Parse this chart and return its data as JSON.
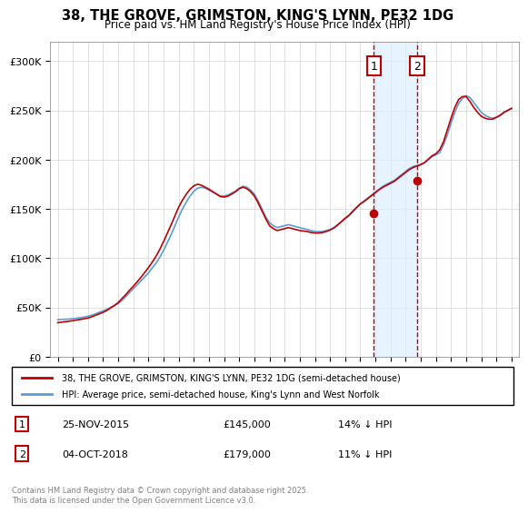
{
  "title": "38, THE GROVE, GRIMSTON, KING'S LYNN, PE32 1DG",
  "subtitle": "Price paid vs. HM Land Registry's House Price Index (HPI)",
  "title_fontsize": 11,
  "subtitle_fontsize": 9,
  "xlabel": "",
  "ylabel": "",
  "ylim": [
    0,
    320000
  ],
  "yticks": [
    0,
    50000,
    100000,
    150000,
    200000,
    250000,
    300000
  ],
  "ytick_labels": [
    "£0",
    "£50K",
    "£100K",
    "£150K",
    "£200K",
    "£250K",
    "£300K"
  ],
  "hpi_color": "#5b9bd5",
  "price_color": "#c00000",
  "sale1_date": "25-NOV-2015",
  "sale1_price": 145000,
  "sale1_label": "14% ↓ HPI",
  "sale2_date": "04-OCT-2018",
  "sale2_price": 179000,
  "sale2_label": "11% ↓ HPI",
  "sale1_x": 2015.9,
  "sale2_x": 2018.75,
  "shade_color": "#ddeeff",
  "legend_line1": "38, THE GROVE, GRIMSTON, KING'S LYNN, PE32 1DG (semi-detached house)",
  "legend_line2": "HPI: Average price, semi-detached house, King's Lynn and West Norfolk",
  "footer": "Contains HM Land Registry data © Crown copyright and database right 2025.\nThis data is licensed under the Open Government Licence v3.0.",
  "hpi_years": [
    1995.0,
    1995.25,
    1995.5,
    1995.75,
    1996.0,
    1996.25,
    1996.5,
    1996.75,
    1997.0,
    1997.25,
    1997.5,
    1997.75,
    1998.0,
    1998.25,
    1998.5,
    1998.75,
    1999.0,
    1999.25,
    1999.5,
    1999.75,
    2000.0,
    2000.25,
    2000.5,
    2000.75,
    2001.0,
    2001.25,
    2001.5,
    2001.75,
    2002.0,
    2002.25,
    2002.5,
    2002.75,
    2003.0,
    2003.25,
    2003.5,
    2003.75,
    2004.0,
    2004.25,
    2004.5,
    2004.75,
    2005.0,
    2005.25,
    2005.5,
    2005.75,
    2006.0,
    2006.25,
    2006.5,
    2006.75,
    2007.0,
    2007.25,
    2007.5,
    2007.75,
    2008.0,
    2008.25,
    2008.5,
    2008.75,
    2009.0,
    2009.25,
    2009.5,
    2009.75,
    2010.0,
    2010.25,
    2010.5,
    2010.75,
    2011.0,
    2011.25,
    2011.5,
    2011.75,
    2012.0,
    2012.25,
    2012.5,
    2012.75,
    2013.0,
    2013.25,
    2013.5,
    2013.75,
    2014.0,
    2014.25,
    2014.5,
    2014.75,
    2015.0,
    2015.25,
    2015.5,
    2015.75,
    2016.0,
    2016.25,
    2016.5,
    2016.75,
    2017.0,
    2017.25,
    2017.5,
    2017.75,
    2018.0,
    2018.25,
    2018.5,
    2018.75,
    2019.0,
    2019.25,
    2019.5,
    2019.75,
    2020.0,
    2020.25,
    2020.5,
    2020.75,
    2021.0,
    2021.25,
    2021.5,
    2021.75,
    2022.0,
    2022.25,
    2022.5,
    2022.75,
    2023.0,
    2023.25,
    2023.5,
    2023.75,
    2024.0,
    2024.25,
    2024.5,
    2024.75,
    2025.0
  ],
  "hpi_values": [
    37500,
    37800,
    38000,
    38200,
    38500,
    39000,
    39500,
    40200,
    41000,
    42000,
    43500,
    45000,
    46500,
    48000,
    50000,
    52000,
    54000,
    57000,
    61000,
    65000,
    69000,
    73000,
    77000,
    81000,
    85000,
    90000,
    95000,
    101000,
    108000,
    116000,
    124000,
    133000,
    142000,
    150000,
    157000,
    163000,
    168000,
    171000,
    172000,
    171000,
    169000,
    167000,
    165000,
    163000,
    163000,
    164000,
    166000,
    168000,
    171000,
    173000,
    172000,
    169000,
    165000,
    158000,
    150000,
    142000,
    136000,
    133000,
    131000,
    132000,
    133000,
    134000,
    133000,
    132000,
    131000,
    130000,
    129000,
    128000,
    127000,
    127000,
    127000,
    128000,
    129000,
    131000,
    134000,
    137000,
    140000,
    143000,
    147000,
    151000,
    155000,
    158000,
    161000,
    164000,
    167000,
    170000,
    173000,
    175000,
    177000,
    179000,
    182000,
    185000,
    188000,
    191000,
    193000,
    194000,
    195000,
    197000,
    200000,
    203000,
    205000,
    207000,
    215000,
    225000,
    237000,
    248000,
    257000,
    262000,
    265000,
    263000,
    258000,
    253000,
    248000,
    245000,
    243000,
    242000,
    243000,
    245000,
    248000,
    250000,
    252000
  ],
  "price_years": [
    1995.0,
    1995.25,
    1995.5,
    1995.75,
    1996.0,
    1996.25,
    1996.5,
    1996.75,
    1997.0,
    1997.25,
    1997.5,
    1997.75,
    1998.0,
    1998.25,
    1998.5,
    1998.75,
    1999.0,
    1999.25,
    1999.5,
    1999.75,
    2000.0,
    2000.25,
    2000.5,
    2000.75,
    2001.0,
    2001.25,
    2001.5,
    2001.75,
    2002.0,
    2002.25,
    2002.5,
    2002.75,
    2003.0,
    2003.25,
    2003.5,
    2003.75,
    2004.0,
    2004.25,
    2004.5,
    2004.75,
    2005.0,
    2005.25,
    2005.5,
    2005.75,
    2006.0,
    2006.25,
    2006.5,
    2006.75,
    2007.0,
    2007.25,
    2007.5,
    2007.75,
    2008.0,
    2008.25,
    2008.5,
    2008.75,
    2009.0,
    2009.25,
    2009.5,
    2009.75,
    2010.0,
    2010.25,
    2010.5,
    2010.75,
    2011.0,
    2011.25,
    2011.5,
    2011.75,
    2012.0,
    2012.25,
    2012.5,
    2012.75,
    2013.0,
    2013.25,
    2013.5,
    2013.75,
    2014.0,
    2014.25,
    2014.5,
    2014.75,
    2015.0,
    2015.25,
    2015.5,
    2015.75,
    2016.0,
    2016.25,
    2016.5,
    2016.75,
    2017.0,
    2017.25,
    2017.5,
    2017.75,
    2018.0,
    2018.25,
    2018.5,
    2018.75,
    2019.0,
    2019.25,
    2019.5,
    2019.75,
    2020.0,
    2020.25,
    2020.5,
    2020.75,
    2021.0,
    2021.25,
    2021.5,
    2021.75,
    2022.0,
    2022.25,
    2022.5,
    2022.75,
    2023.0,
    2023.25,
    2023.5,
    2023.75,
    2024.0,
    2024.25,
    2024.5,
    2024.75,
    2025.0
  ],
  "price_values": [
    34500,
    35000,
    35500,
    36000,
    36500,
    37200,
    37800,
    38500,
    39200,
    40500,
    42000,
    43500,
    45000,
    47000,
    49500,
    52000,
    55000,
    59000,
    63000,
    67500,
    71500,
    76000,
    80500,
    85500,
    90500,
    96000,
    102000,
    109000,
    117000,
    125500,
    134000,
    143000,
    152000,
    159000,
    165000,
    170000,
    173500,
    175000,
    174000,
    172000,
    170000,
    167500,
    165000,
    162500,
    162000,
    163000,
    165000,
    167500,
    170500,
    172000,
    170500,
    167500,
    163000,
    156000,
    148000,
    140000,
    133000,
    130000,
    128000,
    129000,
    130000,
    131000,
    130000,
    129000,
    128000,
    127500,
    127000,
    126000,
    125500,
    125500,
    126000,
    127000,
    128500,
    130500,
    133500,
    137000,
    140500,
    143500,
    147500,
    151500,
    155000,
    157500,
    160500,
    163500,
    166500,
    169500,
    172000,
    174000,
    176000,
    178000,
    181000,
    184000,
    187000,
    190000,
    192000,
    193500,
    195000,
    197000,
    200500,
    204000,
    206000,
    210000,
    218000,
    230000,
    242000,
    253000,
    261000,
    264000,
    264000,
    259000,
    253000,
    248000,
    244000,
    242000,
    241000,
    241000,
    243000,
    245000,
    248000,
    250000,
    252000
  ]
}
